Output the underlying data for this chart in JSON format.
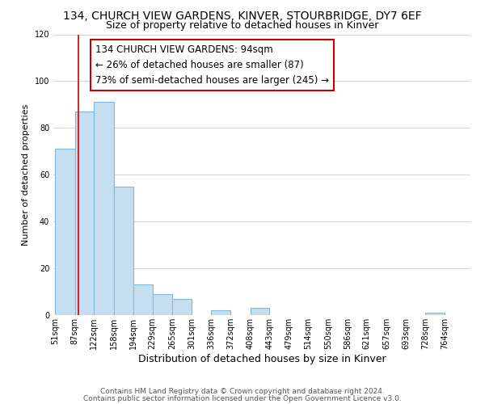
{
  "title": "134, CHURCH VIEW GARDENS, KINVER, STOURBRIDGE, DY7 6EF",
  "subtitle": "Size of property relative to detached houses in Kinver",
  "xlabel": "Distribution of detached houses by size in Kinver",
  "ylabel": "Number of detached properties",
  "bar_edges": [
    51,
    87,
    122,
    158,
    194,
    229,
    265,
    301,
    336,
    372,
    408,
    443,
    479,
    514,
    550,
    586,
    621,
    657,
    693,
    728,
    764
  ],
  "bar_heights": [
    71,
    87,
    91,
    55,
    13,
    9,
    7,
    0,
    2,
    0,
    3,
    0,
    0,
    0,
    0,
    0,
    0,
    0,
    0,
    1,
    0
  ],
  "bar_color": "#c5dff0",
  "bar_edgecolor": "#7fb8d8",
  "property_line_x": 94,
  "property_line_color": "#cc0000",
  "annotation_line1": "134 CHURCH VIEW GARDENS: 94sqm",
  "annotation_line2": "← 26% of detached houses are smaller (87)",
  "annotation_line3": "73% of semi-detached houses are larger (245) →",
  "annotation_fontsize": 8.5,
  "ylim": [
    0,
    120
  ],
  "yticks": [
    0,
    20,
    40,
    60,
    80,
    100,
    120
  ],
  "tick_labels": [
    "51sqm",
    "87sqm",
    "122sqm",
    "158sqm",
    "194sqm",
    "229sqm",
    "265sqm",
    "301sqm",
    "336sqm",
    "372sqm",
    "408sqm",
    "443sqm",
    "479sqm",
    "514sqm",
    "550sqm",
    "586sqm",
    "621sqm",
    "657sqm",
    "693sqm",
    "728sqm",
    "764sqm"
  ],
  "footer_line1": "Contains HM Land Registry data © Crown copyright and database right 2024.",
  "footer_line2": "Contains public sector information licensed under the Open Government Licence v3.0.",
  "grid_color": "#cccccc",
  "background_color": "#ffffff",
  "title_fontsize": 10,
  "subtitle_fontsize": 9,
  "xlabel_fontsize": 9,
  "ylabel_fontsize": 8,
  "tick_fontsize": 7,
  "footer_fontsize": 6.5
}
